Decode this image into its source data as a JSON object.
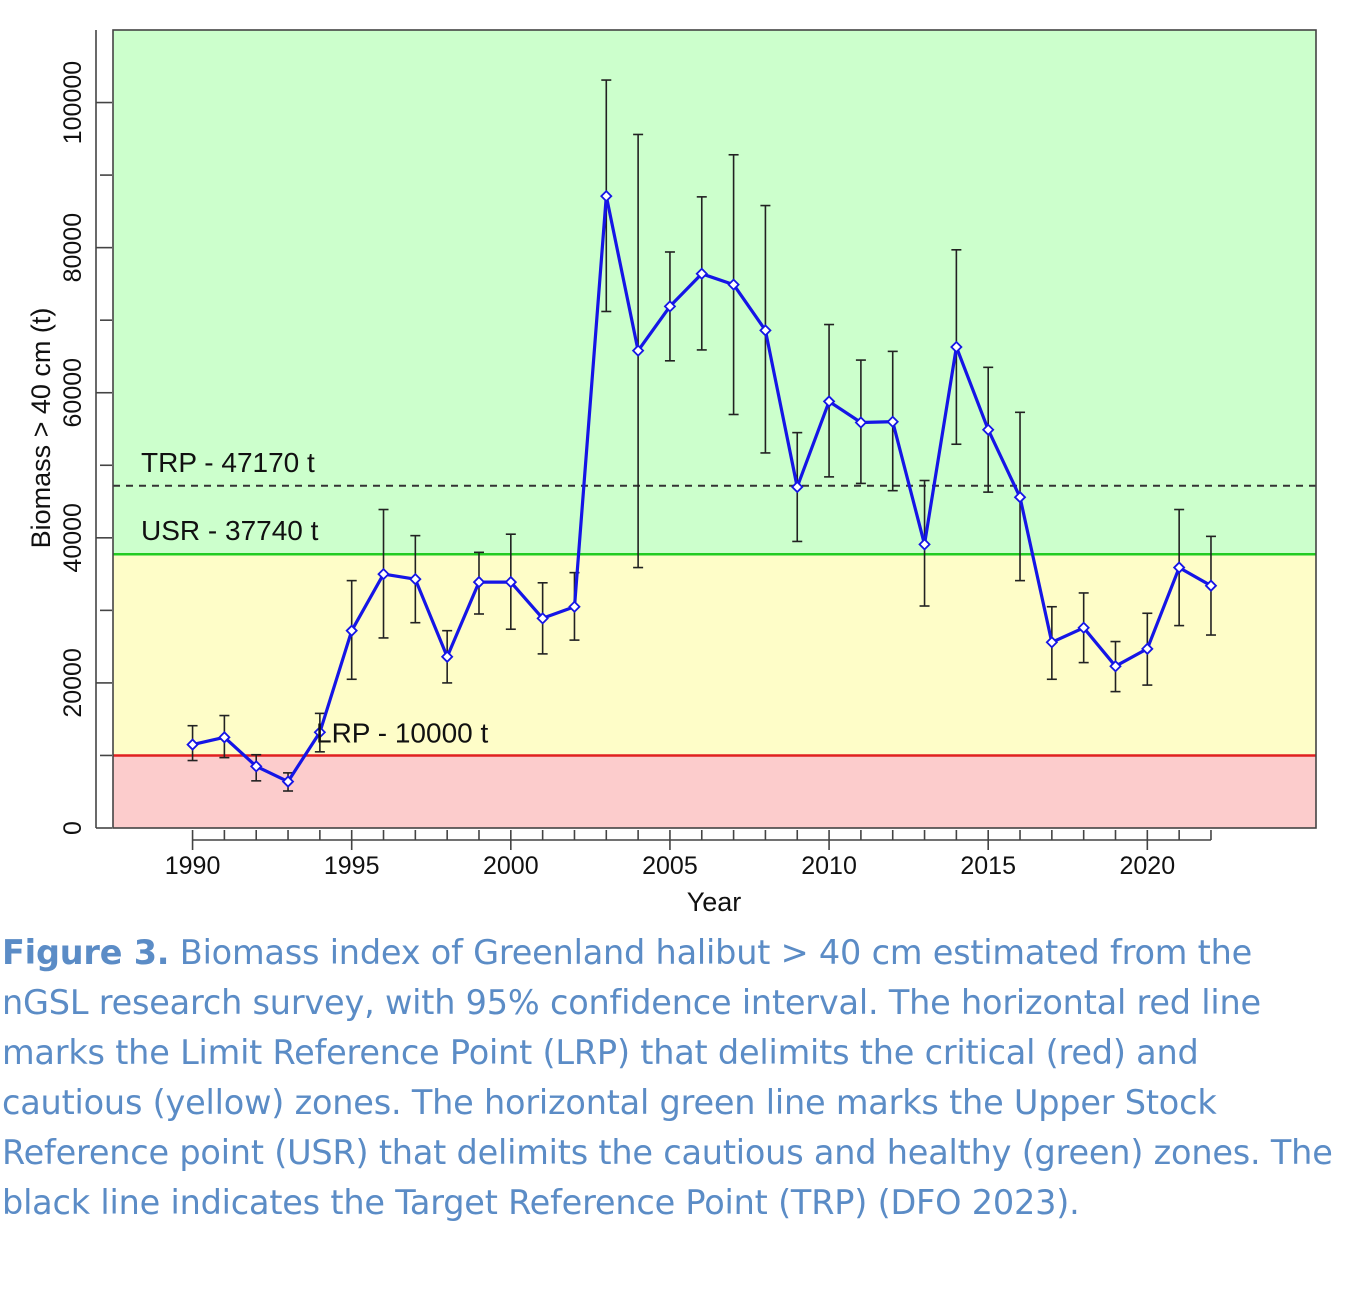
{
  "chart_data": {
    "type": "line",
    "xlabel": "Year",
    "ylabel": "Biomass > 40 cm (t)",
    "xlim": [
      1987.5,
      2025.3
    ],
    "ylim": [
      0,
      110000
    ],
    "x_ticks": [
      1990,
      1995,
      2000,
      2005,
      2010,
      2015,
      2020
    ],
    "x_minor_ticks": [
      1991,
      1992,
      1993,
      1994,
      1996,
      1997,
      1998,
      1999,
      2001,
      2002,
      2003,
      2004,
      2006,
      2007,
      2008,
      2009,
      2011,
      2012,
      2013,
      2014,
      2016,
      2017,
      2018,
      2019,
      2021,
      2022
    ],
    "y_ticks": [
      0,
      20000,
      40000,
      60000,
      80000,
      100000
    ],
    "y_minor_ticks": [
      10000,
      30000,
      50000,
      70000,
      90000
    ],
    "grid": false,
    "zones": [
      {
        "name": "critical",
        "from": 0,
        "to": 10000,
        "color": "#fccccc"
      },
      {
        "name": "cautious",
        "from": 10000,
        "to": 37740,
        "color": "#fefdc8"
      },
      {
        "name": "healthy",
        "from": 37740,
        "to": 110000,
        "color": "#ccffcc"
      }
    ],
    "reference_lines": [
      {
        "label": "TRP - 47170 t",
        "value": 47170,
        "color": "#333333",
        "style": "dashed"
      },
      {
        "label": "USR - 37740 t",
        "value": 37740,
        "color": "#22cc22",
        "style": "solid"
      },
      {
        "label": "LRP - 10000 t",
        "value": 10000,
        "color": "#e02020",
        "style": "solid"
      }
    ],
    "series": [
      {
        "color": "#1515e6",
        "x": [
          1990,
          1991,
          1992,
          1993,
          1994,
          1995,
          1996,
          1997,
          1998,
          1999,
          2000,
          2001,
          2002,
          2003,
          2004,
          2005,
          2006,
          2007,
          2008,
          2009,
          2010,
          2011,
          2012,
          2013,
          2014,
          2015,
          2016,
          2017,
          2018,
          2019,
          2020,
          2021,
          2022
        ],
        "y": [
          11500,
          12500,
          8500,
          6400,
          13200,
          27200,
          35000,
          34300,
          23600,
          33900,
          33900,
          28900,
          30500,
          87100,
          65800,
          71900,
          76400,
          74900,
          68600,
          47000,
          58800,
          55900,
          56000,
          39100,
          66300,
          54900,
          45600,
          25600,
          27600,
          22300,
          24700,
          35900,
          33400
        ],
        "lower": [
          9300,
          9700,
          6500,
          5100,
          10500,
          20500,
          26200,
          28300,
          20000,
          29500,
          27400,
          24000,
          25900,
          71200,
          35900,
          64400,
          65900,
          57000,
          51700,
          39500,
          48400,
          47500,
          46500,
          30600,
          52900,
          46300,
          34100,
          20500,
          22800,
          18800,
          19700,
          27900,
          26600
        ],
        "upper": [
          14100,
          15500,
          10100,
          7600,
          15800,
          34100,
          43900,
          40300,
          27200,
          38000,
          40500,
          33800,
          35200,
          103100,
          95600,
          79400,
          87000,
          92800,
          85800,
          54500,
          69400,
          64500,
          65700,
          47900,
          79700,
          63500,
          57300,
          30500,
          32400,
          25700,
          29600,
          43900,
          40200
        ]
      }
    ]
  },
  "caption": {
    "lead": "Figure 3.",
    "text": " Biomass index of Greenland halibut > 40 cm estimated from the nGSL research survey, with 95% confidence interval. The horizontal red line marks the Limit Reference Point (LRP) that delimits the critical (red) and cautious (yellow) zones. The horizontal green line marks the Upper Stock Reference point (USR) that delimits the cautious and healthy (green) zones. The black line indicates the Target Reference Point (TRP) (DFO 2023)."
  }
}
